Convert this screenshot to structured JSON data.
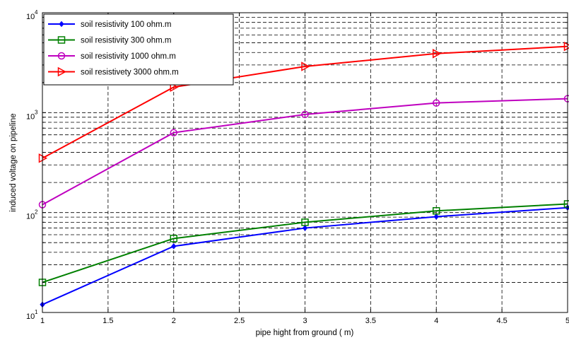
{
  "chart_data": {
    "type": "line",
    "title": "",
    "xlabel": "pipe hight from ground ( m)",
    "ylabel": "induced voltage on pipeline",
    "x": [
      1,
      2,
      3,
      4,
      5
    ],
    "xlim": [
      1,
      5
    ],
    "xticks": [
      1,
      1.5,
      2,
      2.5,
      3,
      3.5,
      4,
      4.5,
      5
    ],
    "xtick_labels": [
      "1",
      "1.5",
      "2",
      "2.5",
      "3",
      "3.5",
      "4",
      "4.5",
      "5"
    ],
    "yscale": "log",
    "ylim": [
      10,
      10000
    ],
    "yticks": [
      {
        "base": "10",
        "exp": "1",
        "value": 10
      },
      {
        "base": "10",
        "exp": "2",
        "value": 100
      },
      {
        "base": "10",
        "exp": "3",
        "value": 1000
      },
      {
        "base": "10",
        "exp": "4",
        "value": 10000
      }
    ],
    "grid": true,
    "legend_position": "top-left",
    "series": [
      {
        "name": "soil resistivity 100 ohm.m",
        "color": "#0000ff",
        "marker": "diamond",
        "values": [
          12,
          46,
          70,
          91,
          112
        ]
      },
      {
        "name": "soil resistivity 300 ohm.m",
        "color": "#008000",
        "marker": "square",
        "values": [
          20,
          55,
          80,
          104,
          122
        ]
      },
      {
        "name": "soil resistivity 1000 ohm.m",
        "color": "#bf00bf",
        "marker": "circle",
        "values": [
          120,
          630,
          960,
          1250,
          1380
        ]
      },
      {
        "name": "soil resistivety 3000 ohm.m",
        "color": "#ff0000",
        "marker": "triangle-right",
        "values": [
          350,
          1800,
          2900,
          3900,
          4600
        ]
      }
    ]
  }
}
